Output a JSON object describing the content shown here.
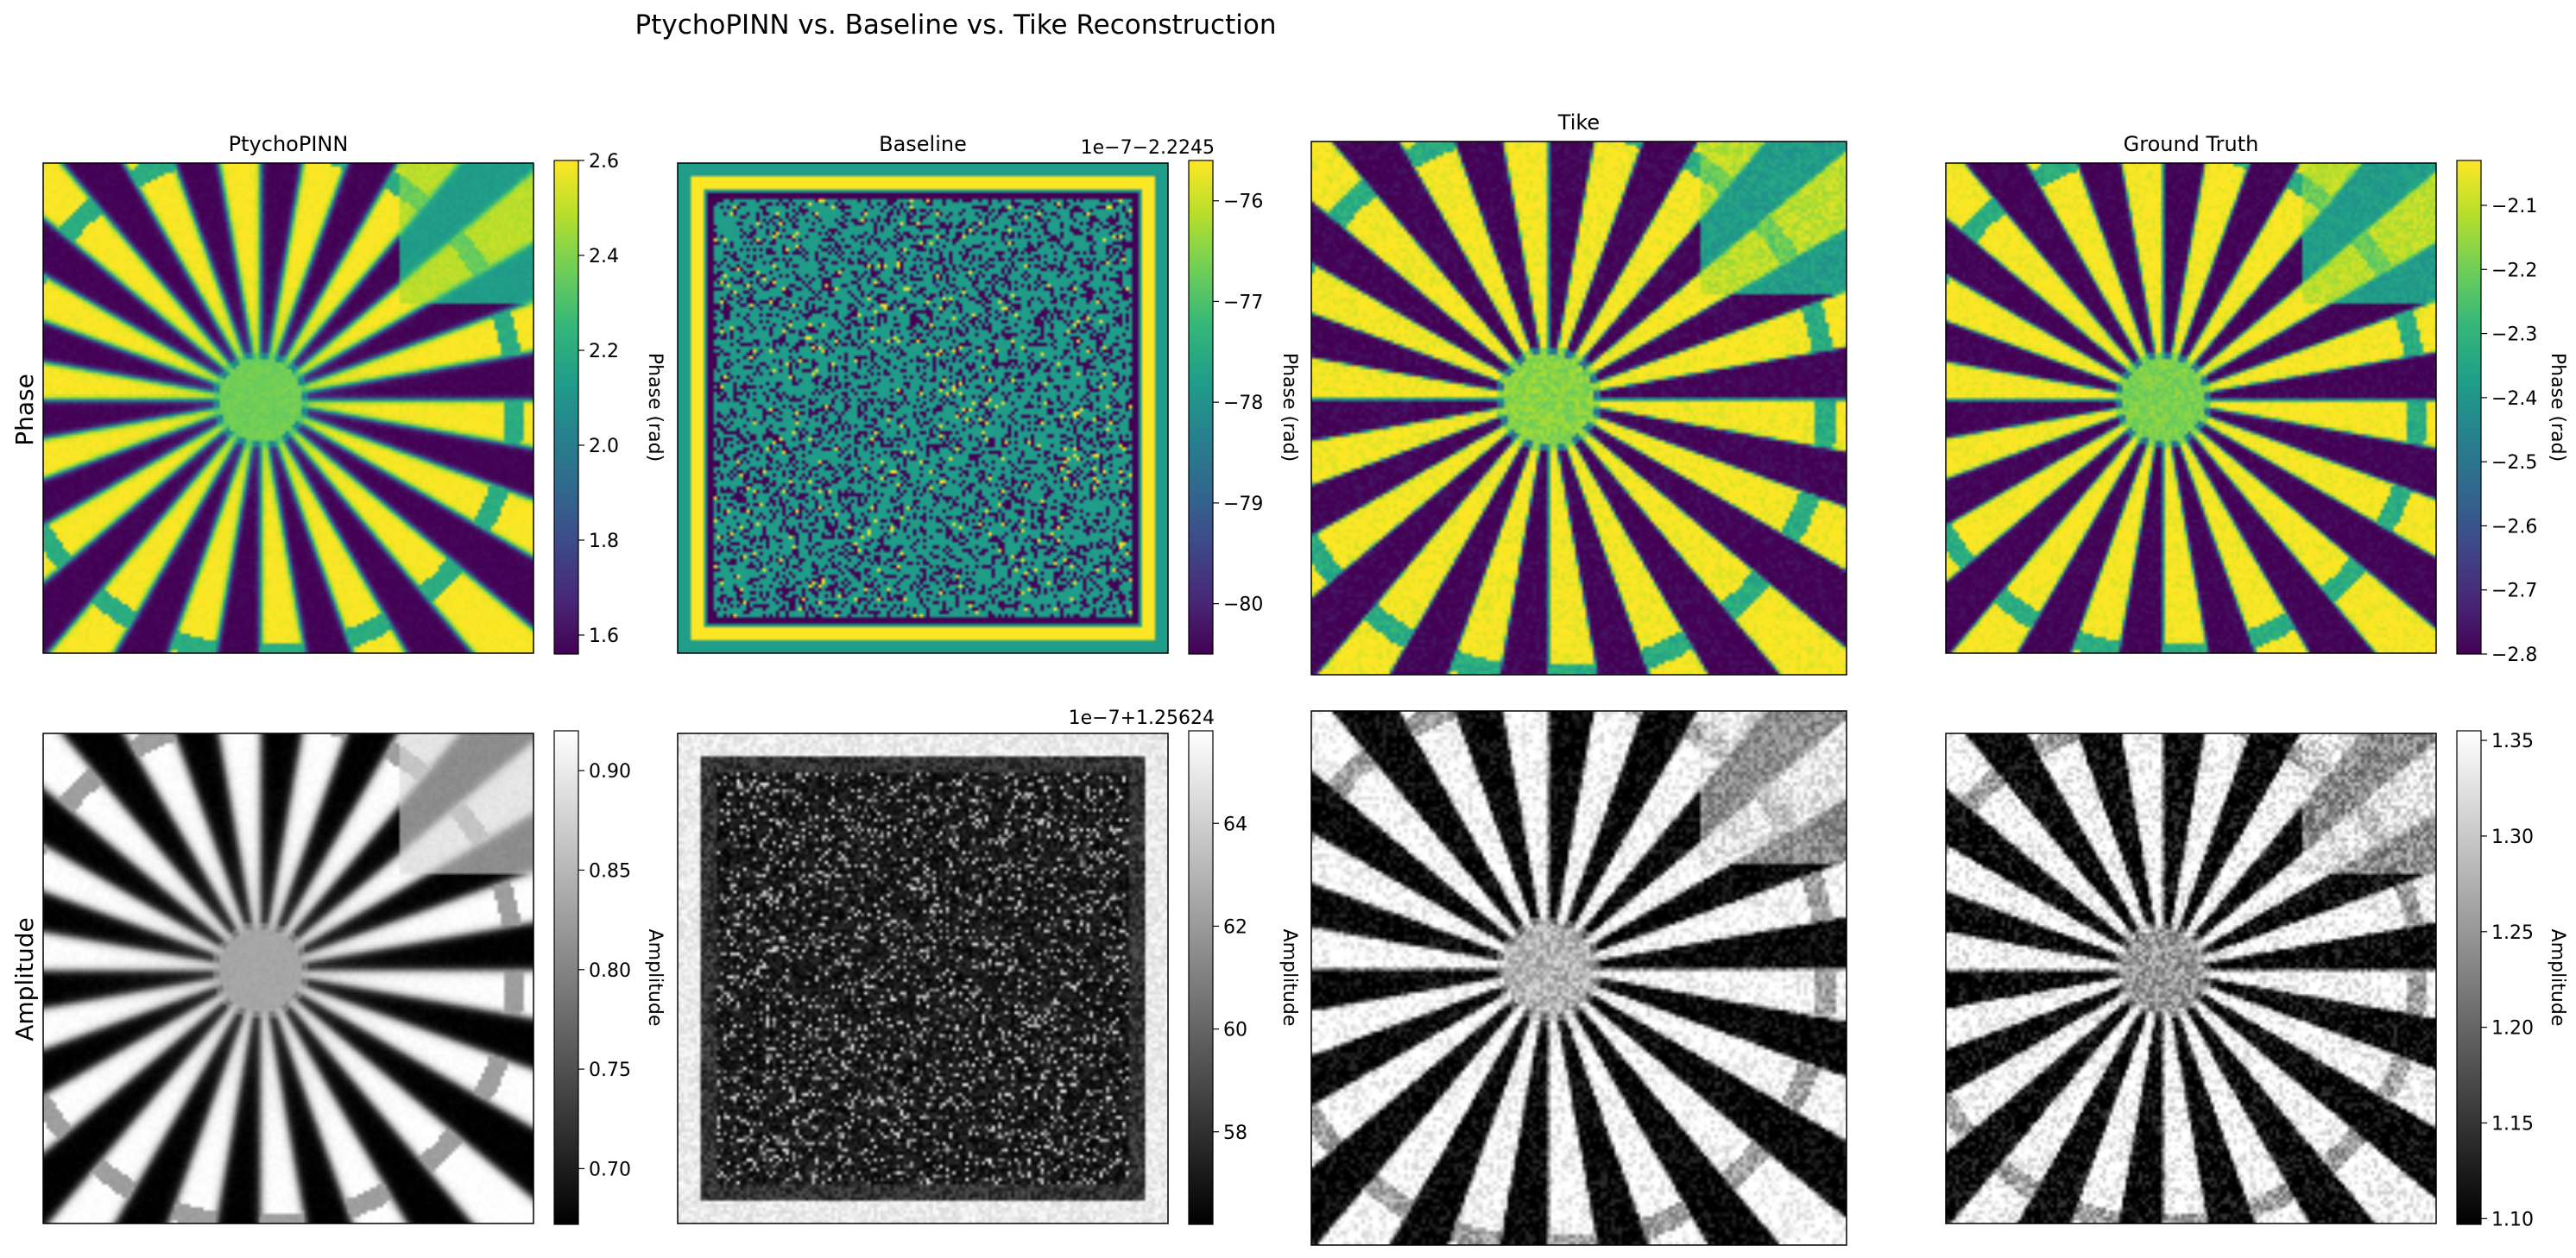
{
  "chart_data": {
    "type": "heatmap",
    "title": "PtychoPINN vs. Baseline vs. Tike Reconstruction",
    "row_labels": [
      "Phase",
      "Amplitude"
    ],
    "columns": [
      "PtychoPINN",
      "Baseline",
      "Tike",
      "Ground Truth"
    ],
    "colormaps": {
      "viridis": [
        "#440154",
        "#482878",
        "#3e4989",
        "#31688e",
        "#26828e",
        "#1f9e89",
        "#35b779",
        "#6ece58",
        "#b5de2b",
        "#fde725"
      ],
      "gray": [
        "#000000",
        "#ffffff"
      ]
    },
    "panels": [
      {
        "id": "phase-ptychopinn",
        "row": 0,
        "col": 0,
        "title": "PtychoPINN",
        "image": "siemens-star",
        "cmap": "viridis",
        "blur": 1.6,
        "noise": 0.05,
        "hub": 0.78
      },
      {
        "id": "phase-baseline",
        "row": 0,
        "col": 1,
        "title": "Baseline",
        "image": "noisy-square",
        "cmap": "viridis"
      },
      {
        "id": "phase-tike",
        "row": 0,
        "col": 2,
        "title": "Tike",
        "image": "siemens-star",
        "cmap": "viridis",
        "blur": 0.6,
        "noise": 0.12,
        "hub": 0.82
      },
      {
        "id": "phase-ground-truth",
        "row": 0,
        "col": 3,
        "title": "Ground Truth",
        "image": "siemens-star",
        "cmap": "viridis",
        "blur": 0.8,
        "noise": 0.1,
        "hub": 0.8
      },
      {
        "id": "amp-ptychopinn",
        "row": 1,
        "col": 0,
        "title": "",
        "image": "siemens-star",
        "cmap": "gray",
        "blur": 2.4,
        "noise": 0.04,
        "hub": 0.65,
        "invert": true
      },
      {
        "id": "amp-baseline",
        "row": 1,
        "col": 1,
        "title": "",
        "image": "noisy-square-gray",
        "cmap": "gray"
      },
      {
        "id": "amp-tike",
        "row": 1,
        "col": 2,
        "title": "",
        "image": "siemens-star",
        "cmap": "gray",
        "blur": 0.7,
        "noise": 0.35,
        "hub": 0.7,
        "invert": true
      },
      {
        "id": "amp-ground-truth",
        "row": 1,
        "col": 3,
        "title": "",
        "image": "siemens-star",
        "cmap": "gray",
        "blur": 0.7,
        "noise": 0.45,
        "hub": 0.6,
        "invert": true
      }
    ],
    "colorbars": [
      {
        "id": "cbar-phase-ptychopinn",
        "panel": "phase-ptychopinn",
        "cmap": "viridis",
        "label": "Phase (rad)",
        "min": 1.56,
        "max": 2.6,
        "ticks": [
          1.6,
          1.8,
          2.0,
          2.2,
          2.4,
          2.6
        ],
        "tick_labels": [
          "1.6",
          "1.8",
          "2.0",
          "2.2",
          "2.4",
          "2.6"
        ],
        "offset": ""
      },
      {
        "id": "cbar-phase-baseline",
        "panel": "phase-baseline",
        "cmap": "viridis",
        "label": "Phase (rad)",
        "min": -80.5,
        "max": -75.6,
        "ticks": [
          -80,
          -79,
          -78,
          -77,
          -76
        ],
        "tick_labels": [
          "−80",
          "−79",
          "−78",
          "−77",
          "−76"
        ],
        "offset": "1e−7−2.2245"
      },
      {
        "id": "cbar-phase-ground-truth",
        "panel": "phase-ground-truth",
        "cmap": "viridis",
        "label": "Phase (rad)",
        "min": -2.8,
        "max": -2.03,
        "ticks": [
          -2.8,
          -2.7,
          -2.6,
          -2.5,
          -2.4,
          -2.3,
          -2.2,
          -2.1
        ],
        "tick_labels": [
          "−2.8",
          "−2.7",
          "−2.6",
          "−2.5",
          "−2.4",
          "−2.3",
          "−2.2",
          "−2.1"
        ],
        "offset": ""
      },
      {
        "id": "cbar-amp-ptychopinn",
        "panel": "amp-ptychopinn",
        "cmap": "gray",
        "label": "Amplitude",
        "min": 0.672,
        "max": 0.92,
        "ticks": [
          0.7,
          0.75,
          0.8,
          0.85,
          0.9
        ],
        "tick_labels": [
          "0.70",
          "0.75",
          "0.80",
          "0.85",
          "0.90"
        ],
        "offset": ""
      },
      {
        "id": "cbar-amp-baseline",
        "panel": "amp-baseline",
        "cmap": "gray",
        "label": "Amplitude",
        "min": 56.2,
        "max": 65.8,
        "ticks": [
          58,
          60,
          62,
          64
        ],
        "tick_labels": [
          "58",
          "60",
          "62",
          "64"
        ],
        "offset": "1e−7+1.25624"
      },
      {
        "id": "cbar-amp-ground-truth",
        "panel": "amp-ground-truth",
        "cmap": "gray",
        "label": "Amplitude",
        "min": 1.097,
        "max": 1.355,
        "ticks": [
          1.1,
          1.15,
          1.2,
          1.25,
          1.3,
          1.35
        ],
        "tick_labels": [
          "1.10",
          "1.15",
          "1.20",
          "1.25",
          "1.30",
          "1.35"
        ],
        "offset": ""
      }
    ]
  }
}
